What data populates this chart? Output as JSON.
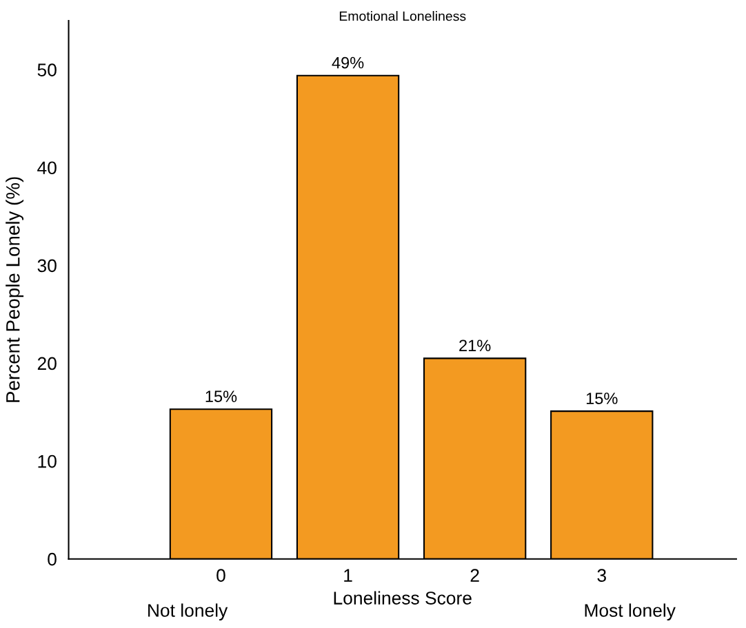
{
  "chart_data": {
    "type": "bar",
    "title": "Emotional Loneliness",
    "xlabel": "Loneliness Score",
    "ylabel": "Percent People Lonely (%)",
    "categories": [
      "0",
      "1",
      "2",
      "3"
    ],
    "values": [
      15.3,
      49.4,
      20.5,
      15.1
    ],
    "value_labels": [
      "15%",
      "49%",
      "21%",
      "15%"
    ],
    "color": "#f39a21",
    "ylim": [
      0,
      55
    ],
    "yticks": [
      0,
      10,
      20,
      30,
      40,
      50
    ],
    "grid": false,
    "annotations": [
      "Not lonely",
      "Most lonely"
    ]
  }
}
